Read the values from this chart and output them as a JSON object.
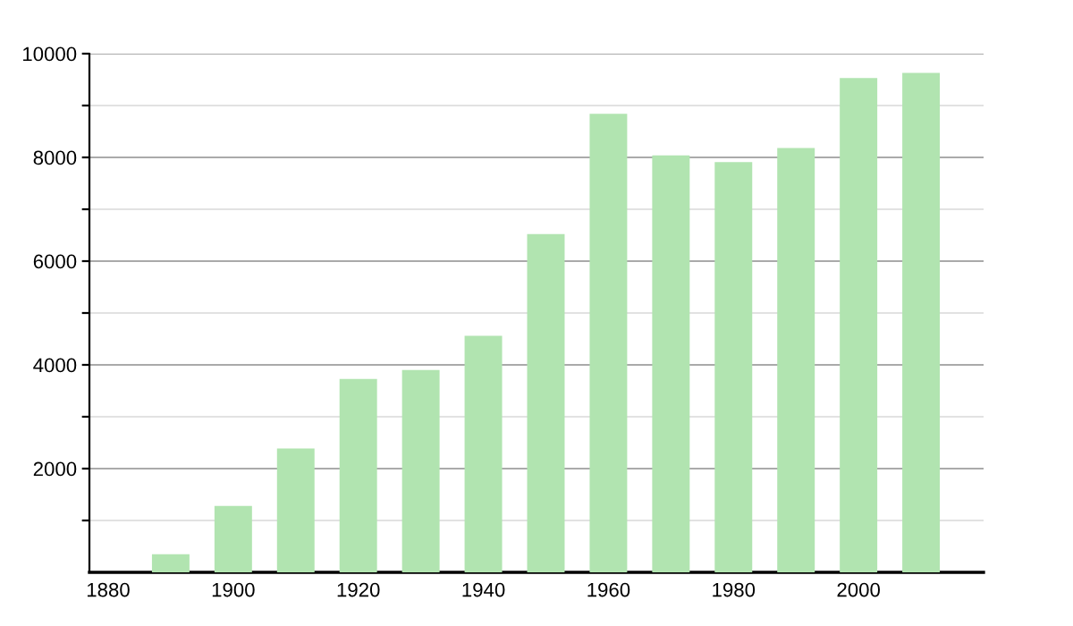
{
  "chart_data": {
    "type": "bar",
    "x": [
      1890,
      1900,
      1910,
      1920,
      1930,
      1940,
      1950,
      1960,
      1970,
      1980,
      1990,
      2000,
      2010
    ],
    "values": [
      350,
      1280,
      2390,
      3730,
      3900,
      4560,
      6520,
      8840,
      8040,
      7910,
      8180,
      9530,
      9630
    ],
    "color": "#b1e4b0",
    "xlim": [
      1877,
      2020
    ],
    "xticks": [
      1880,
      1900,
      1920,
      1940,
      1960,
      1980,
      2000
    ],
    "ylim": [
      0,
      10000
    ],
    "yticks": [
      {
        "value": 1000,
        "label": null
      },
      2000,
      {
        "value": 3000,
        "label": null
      },
      4000,
      {
        "value": 5000,
        "label": null
      },
      6000,
      {
        "value": 7000,
        "label": null
      },
      8000,
      {
        "value": 9000,
        "label": null
      },
      10000
    ],
    "grid": "y"
  }
}
